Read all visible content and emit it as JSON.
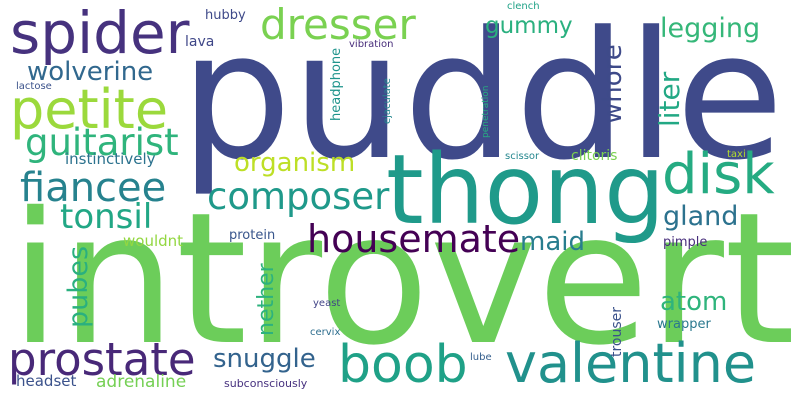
{
  "wordcloud": {
    "words": [
      {
        "text": "puddle",
        "color": "#3f4a8a"
      },
      {
        "text": "introvert",
        "color": "#6ccd5a"
      },
      {
        "text": "thong",
        "color": "#1f9a8a"
      },
      {
        "text": "spider",
        "color": "#46327e"
      },
      {
        "text": "dresser",
        "color": "#7ad151"
      },
      {
        "text": "petite",
        "color": "#9bd93c"
      },
      {
        "text": "disk",
        "color": "#25ab82"
      },
      {
        "text": "guitarist",
        "color": "#2fb47c"
      },
      {
        "text": "fiancee",
        "color": "#26828e"
      },
      {
        "text": "composer",
        "color": "#1f998a"
      },
      {
        "text": "housemate",
        "color": "#440154"
      },
      {
        "text": "tonsil",
        "color": "#22a785"
      },
      {
        "text": "valentine",
        "color": "#21918c"
      },
      {
        "text": "boob",
        "color": "#1fa187"
      },
      {
        "text": "prostate",
        "color": "#482878"
      },
      {
        "text": "wolverine",
        "color": "#31688e"
      },
      {
        "text": "gummy",
        "color": "#2ab07f"
      },
      {
        "text": "legging",
        "color": "#35b779"
      },
      {
        "text": "organism",
        "color": "#bddf26"
      },
      {
        "text": "maid",
        "color": "#287d8e"
      },
      {
        "text": "gland",
        "color": "#2c728e"
      },
      {
        "text": "atom",
        "color": "#2fb47c"
      },
      {
        "text": "snuggle",
        "color": "#33638d"
      },
      {
        "text": "whore",
        "color": "#3e4a89"
      },
      {
        "text": "liter",
        "color": "#22a884"
      },
      {
        "text": "pubes",
        "color": "#2ab07f"
      },
      {
        "text": "nether",
        "color": "#2db27d"
      },
      {
        "text": "adrenaline",
        "color": "#75d054"
      },
      {
        "text": "headset",
        "color": "#3b528b"
      },
      {
        "text": "instinctively",
        "color": "#2c728e"
      },
      {
        "text": "wouldnt",
        "color": "#93d741"
      },
      {
        "text": "protein",
        "color": "#39568c"
      },
      {
        "text": "lava",
        "color": "#3f4788"
      },
      {
        "text": "hubby",
        "color": "#3e4989"
      },
      {
        "text": "clitoris",
        "color": "#7ad151"
      },
      {
        "text": "pimple",
        "color": "#472d7b"
      },
      {
        "text": "wrapper",
        "color": "#2a788e"
      },
      {
        "text": "headphone",
        "color": "#1f948c"
      },
      {
        "text": "ejaculate",
        "color": "#24868e"
      },
      {
        "text": "penetration",
        "color": "#27ad81"
      },
      {
        "text": "vibration",
        "color": "#472c7a"
      },
      {
        "text": "clench",
        "color": "#1fa287"
      },
      {
        "text": "scissor",
        "color": "#24878e"
      },
      {
        "text": "taxi",
        "color": "#b5de2b"
      },
      {
        "text": "trouser",
        "color": "#3b528b"
      },
      {
        "text": "lactose",
        "color": "#3b528b"
      },
      {
        "text": "yeast",
        "color": "#414487"
      },
      {
        "text": "cervix",
        "color": "#2e6e8e"
      },
      {
        "text": "lube",
        "color": "#355f8d"
      },
      {
        "text": "subconsciously",
        "color": "#46307e"
      }
    ]
  }
}
